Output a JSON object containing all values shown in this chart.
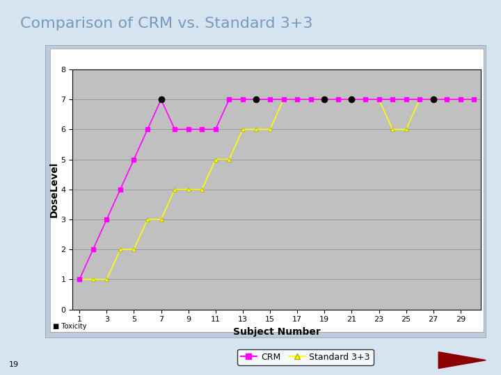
{
  "title": "Comparison of CRM vs. Standard 3+3",
  "xlabel": "Subject Number",
  "ylabel": "DoseLevel",
  "ylim": [
    0,
    8
  ],
  "yticks": [
    0,
    1,
    2,
    3,
    4,
    5,
    6,
    7,
    8
  ],
  "xticks": [
    1,
    3,
    5,
    7,
    9,
    11,
    13,
    15,
    17,
    19,
    21,
    23,
    25,
    27,
    29
  ],
  "crm_x": [
    1,
    2,
    3,
    4,
    5,
    6,
    7,
    8,
    9,
    10,
    11,
    12,
    13,
    14,
    15,
    16,
    17,
    18,
    19,
    20,
    21,
    22,
    23,
    24,
    25,
    26,
    27,
    28,
    29,
    30
  ],
  "crm_y": [
    1,
    2,
    3,
    4,
    5,
    6,
    7,
    6,
    6,
    6,
    6,
    7,
    7,
    7,
    7,
    7,
    7,
    7,
    7,
    7,
    7,
    7,
    7,
    7,
    7,
    7,
    7,
    7,
    7,
    7
  ],
  "std_x": [
    1,
    2,
    3,
    4,
    5,
    6,
    7,
    8,
    9,
    10,
    11,
    12,
    13,
    14,
    15,
    16,
    17,
    18,
    19,
    20,
    21,
    22,
    23,
    24,
    25,
    26,
    27,
    28,
    29,
    30
  ],
  "std_y": [
    1,
    1,
    1,
    2,
    2,
    3,
    3,
    4,
    4,
    4,
    5,
    5,
    6,
    6,
    6,
    7,
    7,
    7,
    7,
    7,
    7,
    7,
    7,
    6,
    6,
    7,
    7,
    7,
    7,
    7
  ],
  "toxicity_x": [
    7,
    14,
    19,
    21,
    27
  ],
  "toxicity_y": [
    7,
    7,
    7,
    7,
    7
  ],
  "crm_color": "#FF00FF",
  "std_color": "#FFFF00",
  "std_edge_color": "#AAAA00",
  "toxicity_color": "#000000",
  "plot_bg": "#C0C0C0",
  "outer_bg": "#B8CCDD",
  "title_color": "#7799BB",
  "grid_color": "#888888",
  "slide_bg": "#D6E4F0",
  "page_number": "19",
  "title_fontsize": 16,
  "axis_label_fontsize": 10,
  "tick_fontsize": 8
}
